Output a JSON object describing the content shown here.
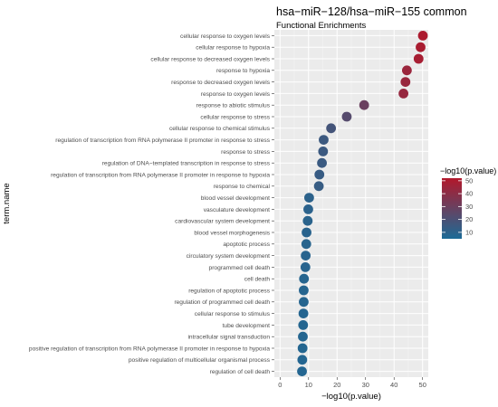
{
  "chart_data": {
    "type": "scatter",
    "title": "hsa−miR−128/hsa−miR−155 common",
    "subtitle": "Functional Enrichments",
    "xlabel": "−log10(p.value)",
    "ylabel": "term.name",
    "xlim": [
      -2,
      52
    ],
    "xticks": [
      0,
      10,
      20,
      30,
      40,
      50
    ],
    "grid": true,
    "legend": {
      "title": "−log10(p.value)",
      "position": "right",
      "ticks": [
        10,
        20,
        30,
        40,
        50
      ],
      "range": [
        5,
        52
      ],
      "color_low": "#1b6b97",
      "color_high": "#b2182b"
    },
    "points": [
      {
        "term": "cellular response to oxygen levels",
        "value": 50.1
      },
      {
        "term": "cellular response to hypoxia",
        "value": 49.3
      },
      {
        "term": "cellular response to decreased oxygen levels",
        "value": 48.6
      },
      {
        "term": "response to hypoxia",
        "value": 44.5
      },
      {
        "term": "response to decreased oxygen levels",
        "value": 44.0
      },
      {
        "term": "response to oxygen levels",
        "value": 43.3
      },
      {
        "term": "response to abiotic stimulus",
        "value": 29.5
      },
      {
        "term": "cellular response to stress",
        "value": 23.4
      },
      {
        "term": "cellular response to chemical stimulus",
        "value": 17.9
      },
      {
        "term": "regulation of transcription from RNA polymerase II promoter in response to stress",
        "value": 15.3
      },
      {
        "term": "response to stress",
        "value": 15.1
      },
      {
        "term": "regulation of DNA−templated transcription in response to stress",
        "value": 14.7
      },
      {
        "term": "regulation of transcription from RNA polymerase II promoter in response to hypoxia",
        "value": 13.8
      },
      {
        "term": "response to chemical",
        "value": 13.6
      },
      {
        "term": "blood vessel development",
        "value": 10.2
      },
      {
        "term": "vasculature development",
        "value": 9.9
      },
      {
        "term": "cardiovascular system development",
        "value": 9.7
      },
      {
        "term": "blood vessel morphogenesis",
        "value": 9.3
      },
      {
        "term": "apoptotic process",
        "value": 9.2
      },
      {
        "term": "circulatory system development",
        "value": 9.0
      },
      {
        "term": "programmed cell death",
        "value": 8.9
      },
      {
        "term": "cell death",
        "value": 8.4
      },
      {
        "term": "regulation of apoptotic process",
        "value": 8.3
      },
      {
        "term": "regulation of programmed cell death",
        "value": 8.3
      },
      {
        "term": "cellular response to stimulus",
        "value": 8.2
      },
      {
        "term": "tube development",
        "value": 8.1
      },
      {
        "term": "intracellular signal transduction",
        "value": 8.0
      },
      {
        "term": "positive regulation of transcription from RNA polymerase II promoter in response to hypoxia",
        "value": 7.9
      },
      {
        "term": "positive regulation of multicellular organismal process",
        "value": 7.8
      },
      {
        "term": "regulation of cell death",
        "value": 7.7
      }
    ]
  }
}
